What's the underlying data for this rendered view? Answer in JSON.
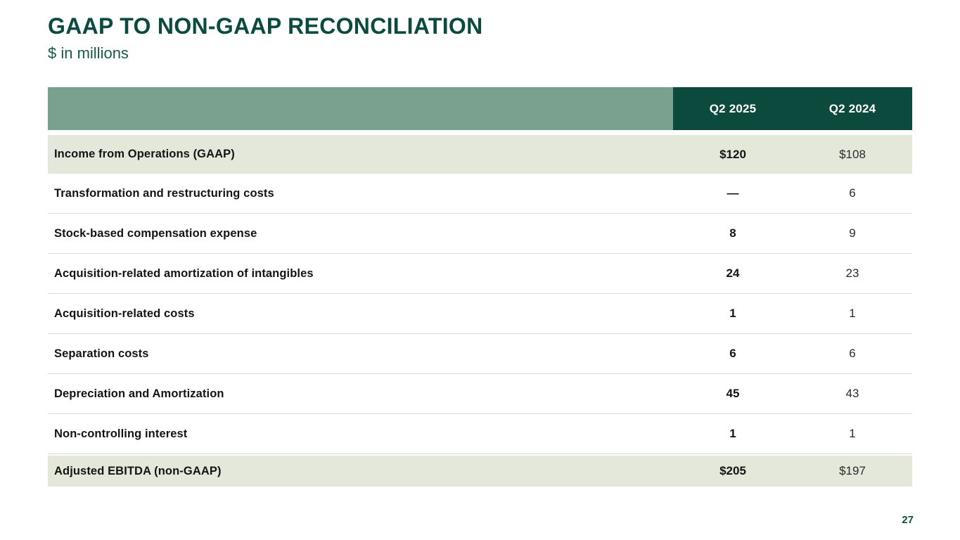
{
  "page": {
    "title": "GAAP TO NON-GAAP RECONCILIATION",
    "subtitle": "$ in millions",
    "page_number": "27"
  },
  "colors": {
    "title_green": "#0B4A3E",
    "subtitle_green": "#17594B",
    "header_sage": "#7AA08F",
    "header_dark_green": "#0D4A3E",
    "row_highlight": "#E4E8DA",
    "divider": "#DBDBD8",
    "text_dark": "#141414",
    "page_number_green": "#0E4E40"
  },
  "table": {
    "columns": [
      "Q2 2025",
      "Q2 2024"
    ],
    "rows": [
      {
        "label": "Income from Operations (GAAP)",
        "q2_2025": "$120",
        "q2_2024": "$108"
      },
      {
        "label": "Transformation and restructuring costs",
        "q2_2025": "—",
        "q2_2024": "6"
      },
      {
        "label": "Stock-based compensation expense",
        "q2_2025": "8",
        "q2_2024": "9"
      },
      {
        "label": "Acquisition-related amortization of intangibles",
        "q2_2025": "24",
        "q2_2024": "23"
      },
      {
        "label": "Acquisition-related costs",
        "q2_2025": "1",
        "q2_2024": "1"
      },
      {
        "label": "Separation costs",
        "q2_2025": "6",
        "q2_2024": "6"
      },
      {
        "label": "Depreciation and Amortization",
        "q2_2025": "45",
        "q2_2024": "43"
      },
      {
        "label": "Non-controlling interest",
        "q2_2025": "1",
        "q2_2024": "1"
      },
      {
        "label": "Adjusted EBITDA (non-GAAP)",
        "q2_2025": "$205",
        "q2_2024": "$197"
      }
    ]
  }
}
